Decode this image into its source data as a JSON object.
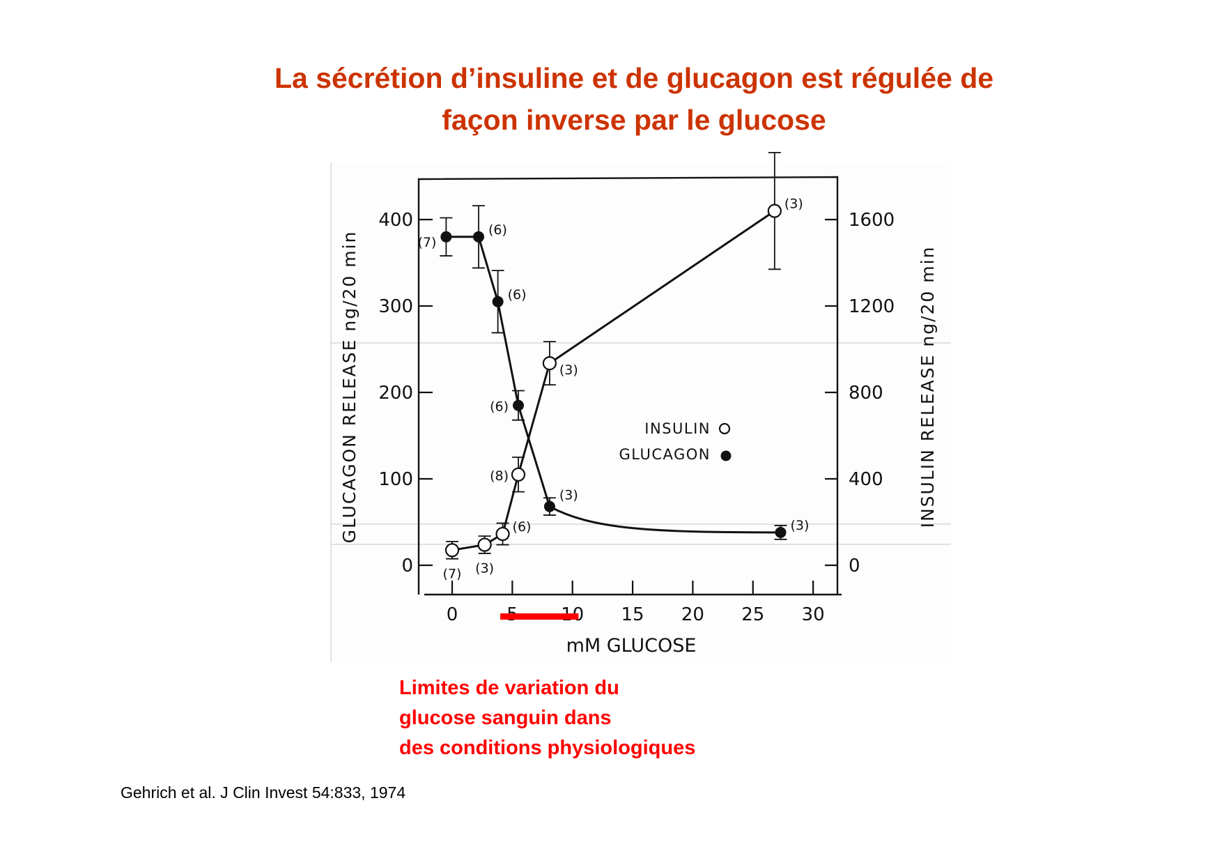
{
  "slide": {
    "title_lines": [
      "La sécrétion d’insuline et de glucagon est régulée de",
      "façon inverse par le glucose"
    ],
    "note_lines": [
      "Limites de variation du",
      "glucose sanguin dans",
      "des conditions physiologiques"
    ],
    "citation": "Gehrich et al. J Clin Invest 54:833, 1974",
    "colors": {
      "title": "#cc3300",
      "note": "#ff0000",
      "highlight_bar": "#ff0000"
    }
  },
  "chart_data": {
    "type": "line",
    "title": "",
    "xlabel": "mM GLUCOSE",
    "ylabel_left": "GLUCAGON RELEASE ng/20 min",
    "ylabel_right": "INSULIN RELEASE ng/20 min",
    "xlim": [
      -2,
      32
    ],
    "ylim_left": [
      0,
      400
    ],
    "ylim_right": [
      0,
      1600
    ],
    "x_ticks": [
      0,
      5,
      10,
      15,
      20,
      25,
      30
    ],
    "y_left_ticks": [
      0,
      100,
      200,
      300,
      400
    ],
    "y_right_ticks": [
      0,
      400,
      800,
      1200,
      1600
    ],
    "grid": false,
    "legend": {
      "position": "center-right",
      "entries": [
        {
          "label": "INSULIN",
          "marker": "open-circle"
        },
        {
          "label": "GLUCAGON",
          "marker": "filled-circle"
        }
      ]
    },
    "highlight": {
      "label": "Limites de variation du glucose sanguin dans des conditions physiologiques",
      "x_range": [
        4,
        10.5
      ],
      "color": "#ff0000"
    },
    "series": [
      {
        "name": "GLUCAGON",
        "axis": "left",
        "marker": "filled-circle",
        "x": [
          -0.5,
          2.2,
          3.8,
          5.5,
          8.1,
          27.3
        ],
        "y": [
          380,
          380,
          305,
          185,
          68,
          38
        ],
        "err": [
          22,
          36,
          36,
          17,
          10,
          8
        ],
        "n": [
          "(7)",
          "(6)",
          "(6)",
          "(6)",
          "(3)",
          "(3)"
        ]
      },
      {
        "name": "INSULIN",
        "axis": "right",
        "marker": "open-circle",
        "x": [
          0,
          2.7,
          4.2,
          5.5,
          8.1,
          26.8
        ],
        "y": [
          70,
          95,
          145,
          420,
          935,
          1640
        ],
        "err": [
          40,
          40,
          50,
          80,
          100,
          270
        ],
        "n": [
          "(7)",
          "(3)",
          "(6)",
          "(8)",
          "(3)",
          "(3)"
        ]
      }
    ]
  }
}
